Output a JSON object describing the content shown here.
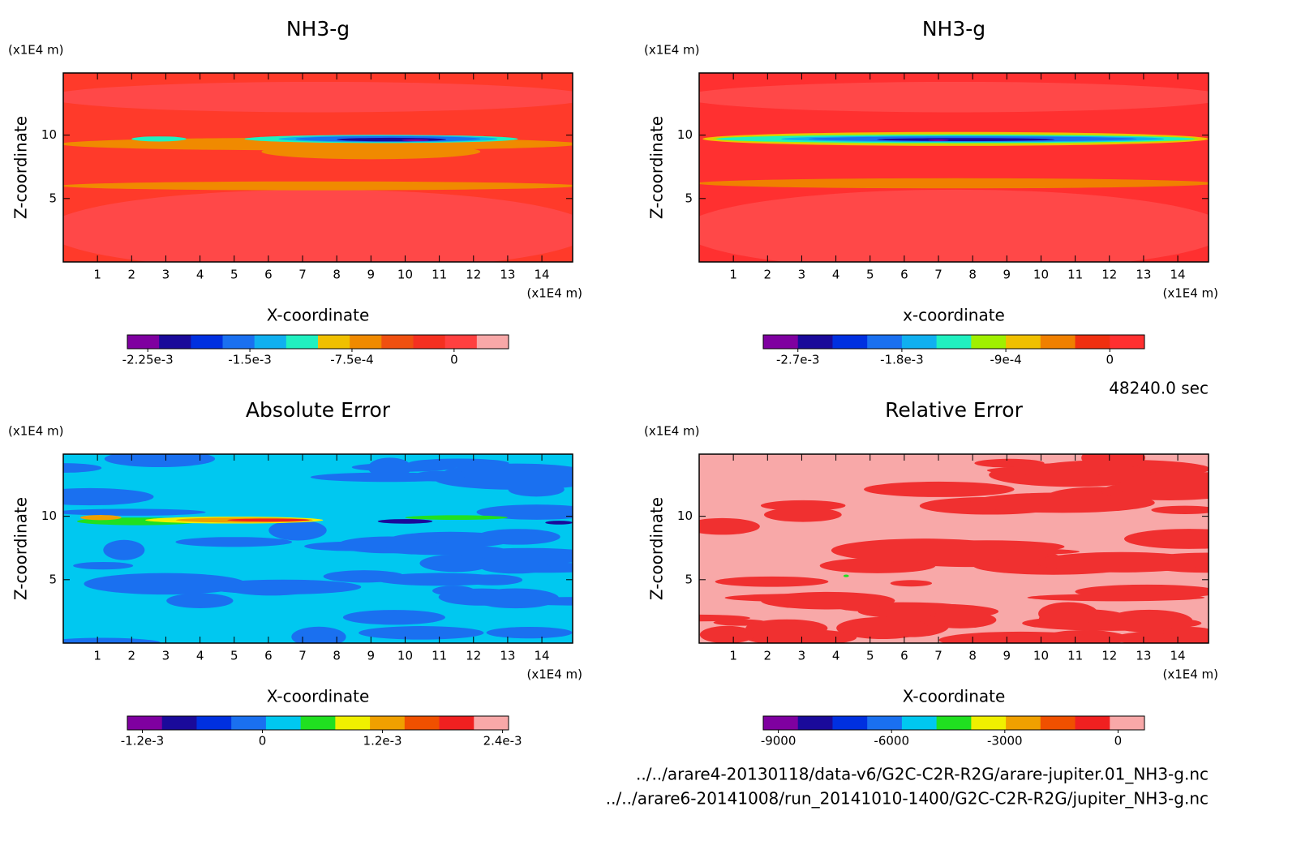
{
  "chart_data": [
    {
      "type": "contour",
      "title": "NH3-g",
      "y_unit": "(x1E4 m)",
      "x_unit": "(x1E4 m)",
      "x_label": "X-coordinate",
      "y_label": "Z-coordinate",
      "xlim": [
        0,
        14.9
      ],
      "ylim": [
        0,
        14.9
      ],
      "xticks": [
        1,
        2,
        3,
        4,
        5,
        6,
        7,
        8,
        9,
        10,
        11,
        12,
        13,
        14
      ],
      "yticks": [
        5,
        10
      ],
      "colorbar": {
        "colors": [
          "#7f00a0",
          "#1a0a9a",
          "#0030e0",
          "#1a70f0",
          "#10b0f0",
          "#20f0c0",
          "#f0c000",
          "#f08a00",
          "#f05010",
          "#f53020",
          "#ff4040",
          "#f8a8a8"
        ],
        "clim": [
          -0.0024,
          0.0004
        ],
        "ticks": [
          {
            "value": -0.00225,
            "label": "-2.25e-3"
          },
          {
            "value": -0.0015,
            "label": "-1.5e-3"
          },
          {
            "value": -0.00075,
            "label": "-7.5e-4"
          },
          0
        ]
      }
    },
    {
      "type": "contour",
      "title": "NH3-g",
      "y_unit": "(x1E4 m)",
      "x_unit": "(x1E4 m)",
      "x_label": "x-coordinate",
      "y_label": "Z-coordinate",
      "xlim": [
        0,
        14.9
      ],
      "ylim": [
        0,
        14.9
      ],
      "xticks": [
        1,
        2,
        3,
        4,
        5,
        6,
        7,
        8,
        9,
        10,
        11,
        12,
        13,
        14
      ],
      "yticks": [
        5,
        10
      ],
      "colorbar": {
        "colors": [
          "#7f00a0",
          "#1a0a9a",
          "#0030e0",
          "#1a70f0",
          "#10b0f0",
          "#20f0c0",
          "#a0f000",
          "#f0c000",
          "#f08000",
          "#f03010",
          "#ff3030"
        ],
        "clim": [
          -0.003,
          0.0003
        ],
        "ticks": [
          {
            "value": -0.0027,
            "label": "-2.7e-3"
          },
          {
            "value": -0.0018,
            "label": "-1.8e-3"
          },
          {
            "value": -0.0009,
            "label": "-9e-4"
          },
          0
        ]
      }
    },
    {
      "type": "contour",
      "title": "Absolute Error",
      "y_unit": "(x1E4 m)",
      "x_unit": "(x1E4 m)",
      "x_label": "X-coordinate",
      "y_label": "Z-coordinate",
      "xlim": [
        0,
        14.9
      ],
      "ylim": [
        0,
        14.9
      ],
      "xticks": [
        1,
        2,
        3,
        4,
        5,
        6,
        7,
        8,
        9,
        10,
        11,
        12,
        13,
        14
      ],
      "yticks": [
        5,
        10
      ],
      "colorbar": {
        "colors": [
          "#7f00a0",
          "#1a0a9a",
          "#0030e0",
          "#1a70f0",
          "#00c8f0",
          "#20e020",
          "#f0f000",
          "#f0a000",
          "#f05000",
          "#f02020",
          "#f8a8a8"
        ],
        "clim": [
          -0.00135,
          0.00246
        ],
        "ticks": [
          {
            "value": -0.0012,
            "label": "-1.2e-3"
          },
          0,
          {
            "value": 0.0012,
            "label": "1.2e-3"
          },
          {
            "value": 0.0024,
            "label": "2.4e-3"
          }
        ]
      }
    },
    {
      "type": "contour",
      "title": "Relative Error",
      "y_unit": "(x1E4 m)",
      "x_unit": "(x1E4 m)",
      "x_label": "X-coordinate",
      "y_label": "Z-coordinate",
      "xlim": [
        0,
        14.9
      ],
      "ylim": [
        0,
        14.9
      ],
      "xticks": [
        1,
        2,
        3,
        4,
        5,
        6,
        7,
        8,
        9,
        10,
        11,
        12,
        13,
        14
      ],
      "yticks": [
        5,
        10
      ],
      "colorbar": {
        "colors": [
          "#7f00a0",
          "#1a0a9a",
          "#0030e0",
          "#1a70f0",
          "#00c8f0",
          "#20e020",
          "#f0f000",
          "#f0a000",
          "#f05000",
          "#f02020",
          "#f8a8a8"
        ],
        "clim": [
          -9400,
          700
        ],
        "ticks": [
          -9000,
          -6000,
          -3000,
          0
        ]
      }
    }
  ],
  "time_label": "48240.0 sec",
  "files": [
    "../../arare4-20130118/data-v6/G2C-C2R-R2G/arare-jupiter.01_NH3-g.nc",
    "../../arare6-20141008/run_20141010-1400/G2C-C2R-R2G/jupiter_NH3-g.nc"
  ]
}
